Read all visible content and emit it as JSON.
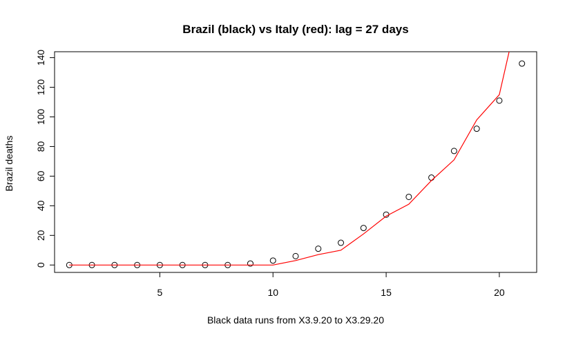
{
  "chart_data": {
    "type": "scatter",
    "title": "Brazil (black) vs Italy (red): lag = 27 days",
    "xlabel": "Black data runs from X3.9.20 to X3.29.20",
    "ylabel": "Brazil deaths",
    "xlim": [
      0.35,
      21.65
    ],
    "ylim": [
      -5,
      144
    ],
    "x_ticks": [
      5,
      10,
      15,
      20
    ],
    "y_ticks": [
      0,
      20,
      40,
      60,
      80,
      100,
      120,
      140
    ],
    "grid": false,
    "legend": "none",
    "series": [
      {
        "kind": "points",
        "color": "#000000",
        "x": [
          1,
          2,
          3,
          4,
          5,
          6,
          7,
          8,
          9,
          10,
          11,
          12,
          13,
          14,
          15,
          16,
          17,
          18,
          19,
          20,
          21
        ],
        "y": [
          0,
          0,
          0,
          0,
          0,
          0,
          0,
          0,
          1,
          3,
          6,
          11,
          15,
          25,
          34,
          46,
          59,
          77,
          92,
          111,
          136
        ]
      },
      {
        "kind": "line",
        "color": "#ff0000",
        "x": [
          1,
          2,
          3,
          4,
          5,
          6,
          7,
          8,
          9,
          10,
          11,
          12,
          13,
          14,
          15,
          16,
          17,
          18,
          19,
          20,
          21
        ],
        "y": [
          0,
          0,
          0,
          0,
          0,
          0,
          0,
          0,
          0,
          0,
          3,
          7,
          10,
          21,
          33,
          41,
          57,
          71,
          98,
          115,
          182
        ]
      }
    ]
  }
}
